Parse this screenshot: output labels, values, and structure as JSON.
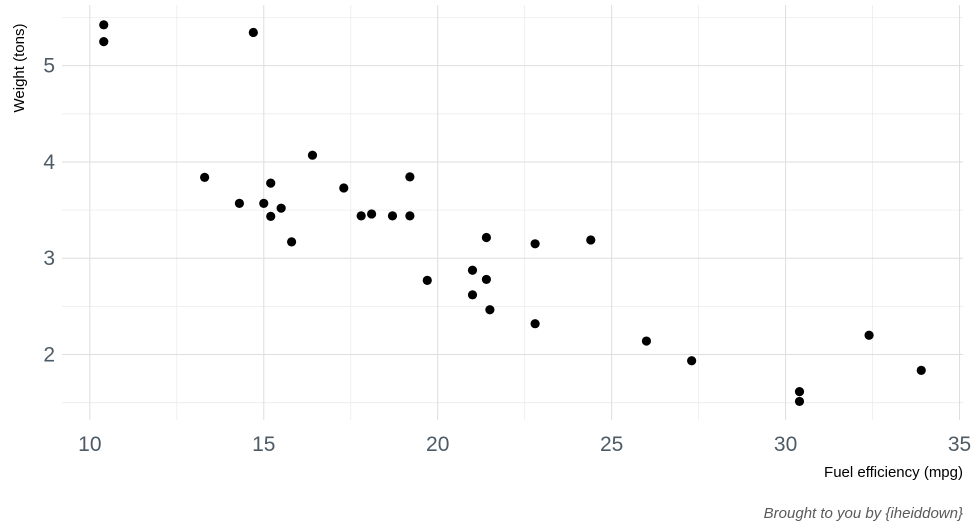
{
  "chart_data": {
    "type": "scatter",
    "xlabel": "Fuel efficiency (mpg)",
    "ylabel": "Weight (tons)",
    "caption": "Brought to you by {iheiddown}",
    "xlim": [
      9.2,
      35.1
    ],
    "ylim": [
      1.32,
      5.63
    ],
    "x_ticks": [
      10,
      15,
      20,
      25,
      30,
      35
    ],
    "y_ticks": [
      2,
      3,
      4,
      5
    ],
    "x_minor": [
      12.5,
      17.5,
      22.5,
      27.5,
      32.5
    ],
    "y_minor": [
      1.5,
      2.5,
      3.5,
      4.5,
      5.5
    ],
    "grid": true,
    "legend": false,
    "point_color": "#000000",
    "points": [
      {
        "x": 10.4,
        "y": 5.424
      },
      {
        "x": 10.4,
        "y": 5.25
      },
      {
        "x": 14.7,
        "y": 5.345
      },
      {
        "x": 13.3,
        "y": 3.84
      },
      {
        "x": 14.3,
        "y": 3.57
      },
      {
        "x": 15.0,
        "y": 3.57
      },
      {
        "x": 15.2,
        "y": 3.78
      },
      {
        "x": 15.2,
        "y": 3.435
      },
      {
        "x": 15.5,
        "y": 3.52
      },
      {
        "x": 15.8,
        "y": 3.17
      },
      {
        "x": 16.4,
        "y": 4.07
      },
      {
        "x": 17.3,
        "y": 3.73
      },
      {
        "x": 17.8,
        "y": 3.44
      },
      {
        "x": 18.1,
        "y": 3.46
      },
      {
        "x": 18.7,
        "y": 3.44
      },
      {
        "x": 19.2,
        "y": 3.44
      },
      {
        "x": 19.2,
        "y": 3.845
      },
      {
        "x": 19.7,
        "y": 2.77
      },
      {
        "x": 21.0,
        "y": 2.62
      },
      {
        "x": 21.0,
        "y": 2.875
      },
      {
        "x": 21.4,
        "y": 3.215
      },
      {
        "x": 21.4,
        "y": 2.78
      },
      {
        "x": 21.5,
        "y": 2.465
      },
      {
        "x": 22.8,
        "y": 2.32
      },
      {
        "x": 22.8,
        "y": 3.15
      },
      {
        "x": 24.4,
        "y": 3.19
      },
      {
        "x": 26.0,
        "y": 2.14
      },
      {
        "x": 27.3,
        "y": 1.935
      },
      {
        "x": 30.4,
        "y": 1.615
      },
      {
        "x": 30.4,
        "y": 1.513
      },
      {
        "x": 32.4,
        "y": 2.2
      },
      {
        "x": 33.9,
        "y": 1.835
      }
    ]
  }
}
